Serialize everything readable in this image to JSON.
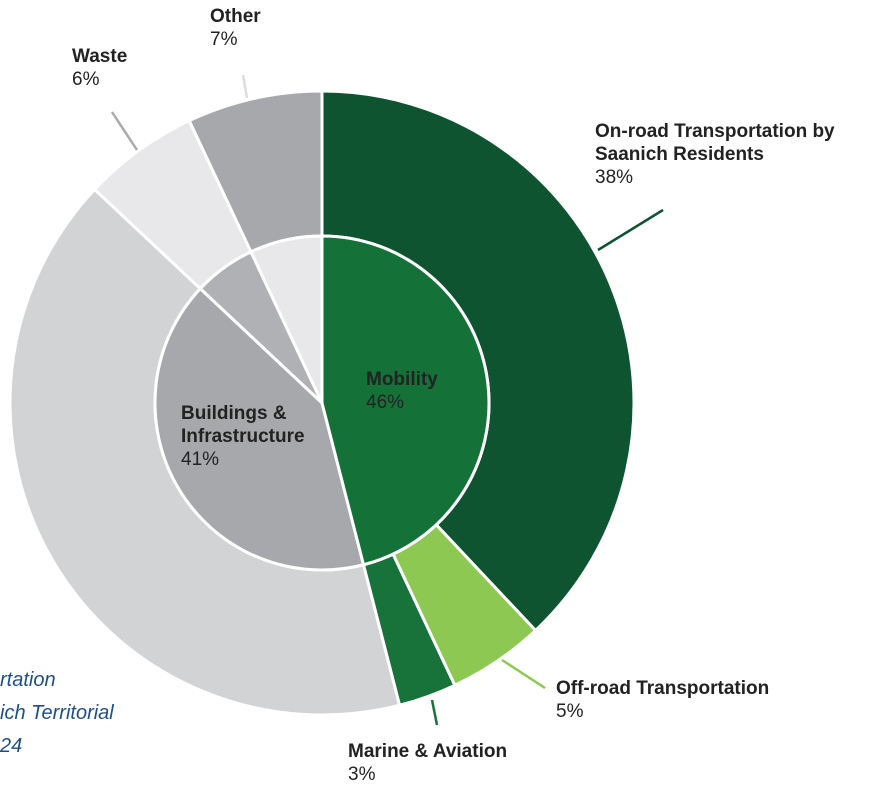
{
  "chart_data": {
    "type": "sunburst",
    "inner": {
      "categories": [
        "Mobility",
        "Buildings & Infrastructure",
        null,
        null
      ],
      "values": [
        46,
        41,
        6,
        7
      ],
      "value_labels": [
        "46%",
        "41%",
        null,
        null
      ],
      "colors": [
        "#147238",
        "#a7a8ab",
        "#b0b1b4",
        "#e8e8ea"
      ]
    },
    "outer": {
      "categories": [
        "On-road Transportation by Saanich Residents",
        "Off-road Transportation",
        "Marine & Aviation",
        null,
        "Waste",
        "Other"
      ],
      "values": [
        38,
        5,
        3,
        41,
        6,
        7
      ],
      "value_labels": [
        "38%",
        "5%",
        "3%",
        null,
        "6%",
        "7%"
      ],
      "colors": [
        "#0f5430",
        "#8dc853",
        "#177339",
        "#d2d3d5",
        "#e8e8ea",
        "#a7a8ab"
      ]
    },
    "annotations": [
      "rtation",
      "ich Territorial",
      "24"
    ]
  }
}
